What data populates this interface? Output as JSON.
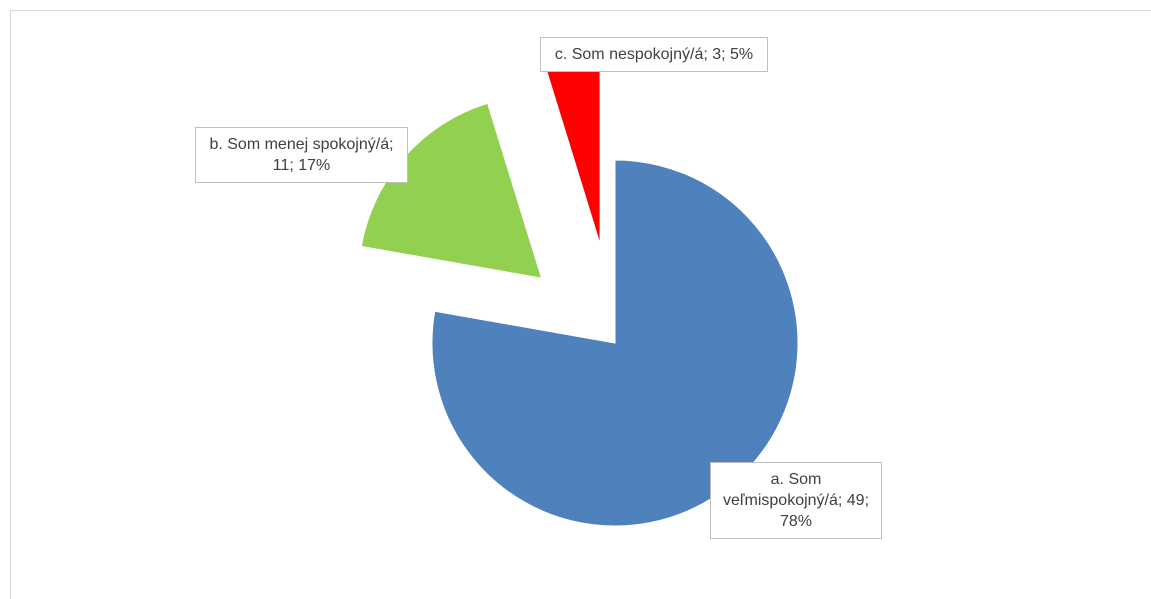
{
  "chart_data": {
    "type": "pie",
    "values": [
      49,
      11,
      3
    ],
    "value_labels": [
      "a. Som veľmispokojný/á; 49; 78%",
      "b. Som menej spokojný/á; 11; 17%",
      "c. Som nespokojný/á; 3; 5%"
    ],
    "colors": [
      "#4f81bd",
      "#92d050",
      "#ff0000"
    ]
  }
}
